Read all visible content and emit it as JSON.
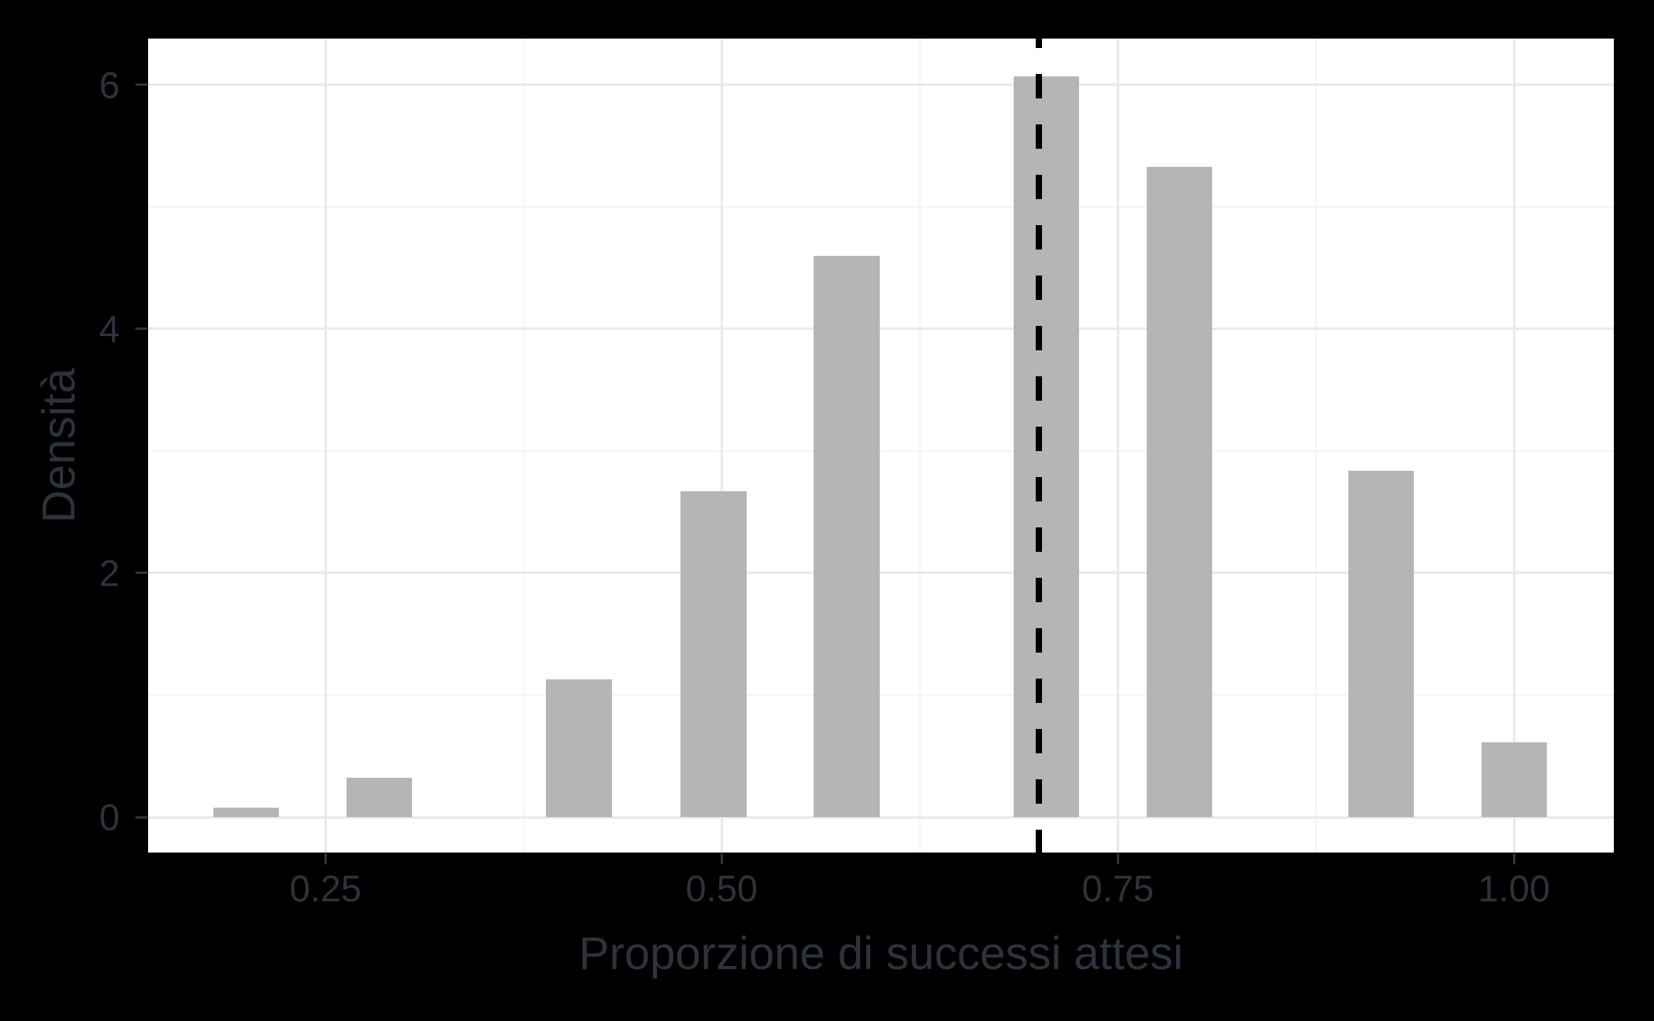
{
  "chart_data": {
    "type": "bar",
    "title": "",
    "xlabel": "Proporzione di successi attesi",
    "ylabel": "Densità",
    "xlim": [
      0.138,
      1.063
    ],
    "ylim": [
      -0.29,
      6.38
    ],
    "x_ticks": [
      0.25,
      0.5,
      0.75,
      1.0
    ],
    "x_tick_labels": [
      "0.25",
      "0.50",
      "0.75",
      "1.00"
    ],
    "y_ticks": [
      0,
      2,
      4,
      6
    ],
    "y_tick_labels": [
      "0",
      "2",
      "4",
      "6"
    ],
    "x_minor_gridlines": [
      0.375,
      0.625,
      0.875
    ],
    "y_minor_gridlines": [
      1,
      3,
      5
    ],
    "grid": true,
    "legend": false,
    "bar_width": 0.0415,
    "bars": [
      {
        "x": 0.2,
        "density": 0.08
      },
      {
        "x": 0.284,
        "density": 0.32
      },
      {
        "x": 0.41,
        "density": 1.13
      },
      {
        "x": 0.495,
        "density": 2.67
      },
      {
        "x": 0.579,
        "density": 4.6
      },
      {
        "x": 0.705,
        "density": 6.07
      },
      {
        "x": 0.789,
        "density": 5.33
      },
      {
        "x": 0.916,
        "density": 2.84
      },
      {
        "x": 1.0,
        "density": 0.61
      }
    ],
    "vline": {
      "x": 0.7,
      "style": "dashed",
      "color": "#000000"
    },
    "colors": {
      "outer_background": "#000000",
      "panel_background": "#ffffff",
      "bar_fill": "#b5b5b5",
      "grid_major": "#e9e9e9",
      "grid_minor": "#f4f4f4",
      "axis_text": "#2d323c",
      "tick_mark": "#333333"
    }
  }
}
